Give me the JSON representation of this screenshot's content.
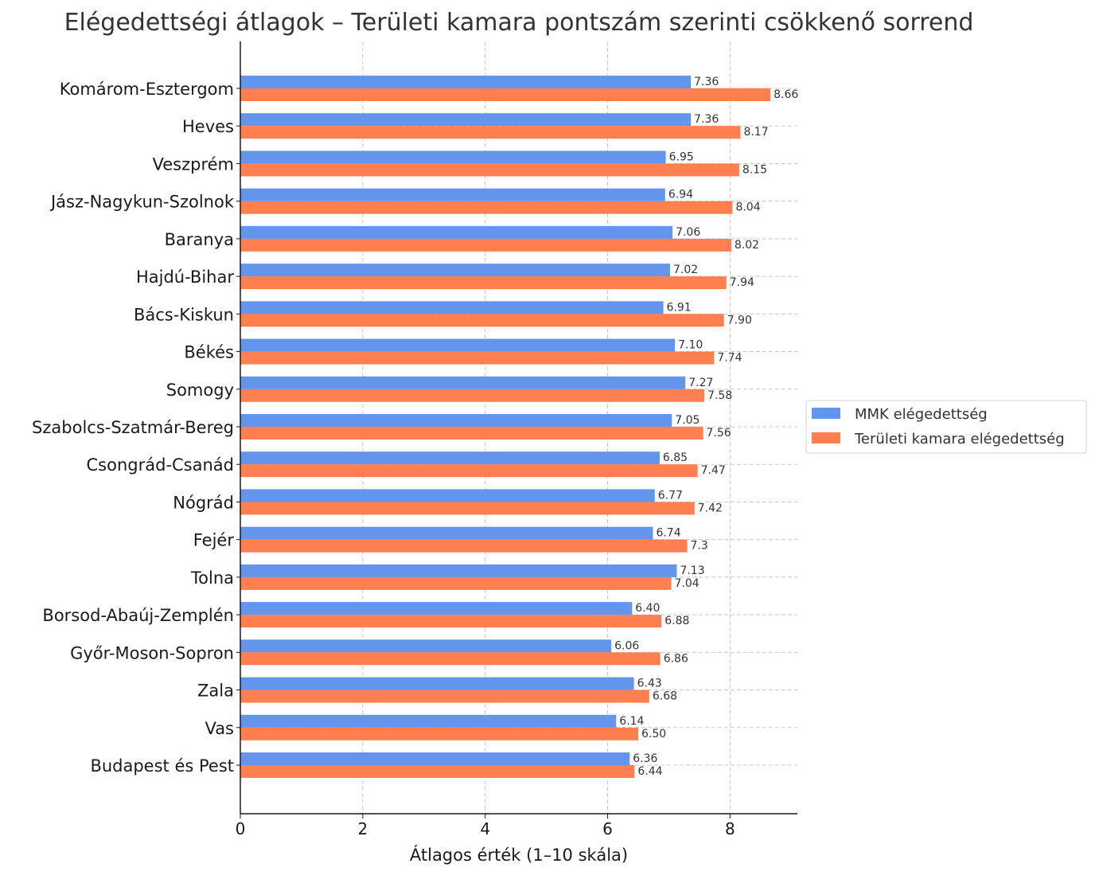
{
  "chart_data": {
    "type": "bar",
    "orientation": "horizontal",
    "title": "Elégedettségi átlagok – Területi kamara pontszám szerinti csökkenő sorrend",
    "xlabel": "Átlagos érték (1–10 skála)",
    "ylabel": "",
    "xlim": [
      0,
      9.1
    ],
    "xticks": [
      0,
      2,
      4,
      6,
      8
    ],
    "grid": true,
    "legend_position": "center-right",
    "categories": [
      "Komárom-Esztergom",
      "Heves",
      "Veszprém",
      "Jász-Nagykun-Szolnok",
      "Baranya",
      "Hajdú-Bihar",
      "Bács-Kiskun",
      "Békés",
      "Somogy",
      "Szabolcs-Szatmár-Bereg",
      "Csongrád-Csanád",
      "Nógrád",
      "Fejér",
      "Tolna",
      "Borsod-Abaúj-Zemplén",
      "Győr-Moson-Sopron",
      "Zala",
      "Vas",
      "Budapest és Pest"
    ],
    "series": [
      {
        "name": "MMK elégedettség",
        "color": "#6495ED",
        "values": [
          7.36,
          7.36,
          6.95,
          6.94,
          7.06,
          7.02,
          6.91,
          7.1,
          7.27,
          7.05,
          6.85,
          6.77,
          6.74,
          7.13,
          6.4,
          6.06,
          6.43,
          6.14,
          6.36
        ],
        "labels": [
          "7.36",
          "7.36",
          "6.95",
          "6.94",
          "7.06",
          "7.02",
          "6.91",
          "7.10",
          "7.27",
          "7.05",
          "6.85",
          "6.77",
          "6.74",
          "7.13",
          "6.40",
          "6.06",
          "6.43",
          "6.14",
          "6.36"
        ]
      },
      {
        "name": "Területi kamara elégedettség",
        "color": "#FF7F50",
        "values": [
          8.66,
          8.17,
          8.15,
          8.04,
          8.02,
          7.94,
          7.9,
          7.74,
          7.58,
          7.56,
          7.47,
          7.42,
          7.3,
          7.04,
          6.88,
          6.86,
          6.68,
          6.5,
          6.44
        ],
        "labels": [
          "8.66",
          "8.17",
          "8.15",
          "8.04",
          "8.02",
          "7.94",
          "7.90",
          "7.74",
          "7.58",
          "7.56",
          "7.47",
          "7.42",
          "7.3",
          "7.04",
          "6.88",
          "6.86",
          "6.68",
          "6.50",
          "6.44"
        ]
      }
    ]
  }
}
